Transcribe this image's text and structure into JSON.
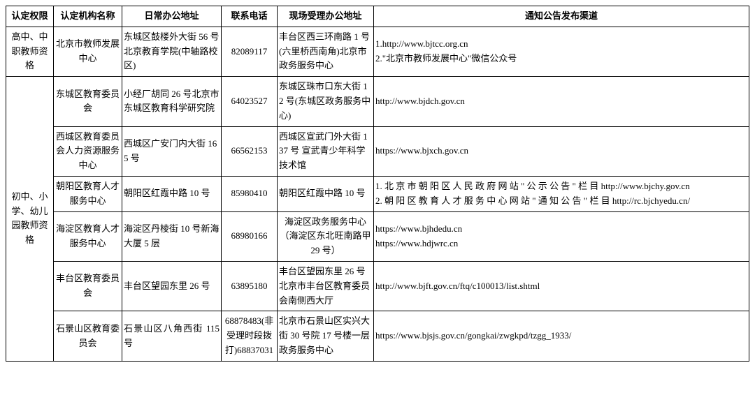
{
  "headers": {
    "authority": "认定权限",
    "org": "认定机构名称",
    "officeAddr": "日常办公地址",
    "phone": "联系电话",
    "siteAddr": "现场受理办公地址",
    "channel": "通知公告发布渠道"
  },
  "rows": [
    {
      "authority": "高中、中职教师资格",
      "org": "北京市教师发展中心",
      "officeAddr": "东城区鼓楼外大街 56 号北京教育学院(中轴路校区)",
      "phone": "82089117",
      "siteAddr": "丰台区西三环南路 1 号(六里桥西南角)北京市政务服务中心",
      "channel": "1.http://www.bjtcc.org.cn\n2.\"北京市教师发展中心\"微信公众号"
    },
    {
      "authority": "初中、小学、幼儿园教师资格",
      "org": "东城区教育委员会",
      "officeAddr": "小经厂胡同 26 号北京市东城区教育科学研究院",
      "phone": "64023527",
      "siteAddr": "东城区珠市口东大街 12 号(东城区政务服务中心)",
      "channel": "http://www.bjdch.gov.cn"
    },
    {
      "org": "西城区教育委员会人力资源服务中心",
      "officeAddr": "西城区广安门内大街 165 号",
      "phone": "66562153",
      "siteAddr": "西城区宣武门外大街 137 号 宣武青少年科学技术馆",
      "channel": "https://www.bjxch.gov.cn"
    },
    {
      "org": "朝阳区教育人才服务中心",
      "officeAddr": "朝阳区红霞中路 10 号",
      "phone": "85980410",
      "siteAddr": "朝阳区红霞中路 10 号",
      "channel": "1. 北 京 市 朝 阳 区 人 民 政 府 网 站 \" 公 示 公 告 \" 栏 目 http://www.bjchy.gov.cn\n2. 朝 阳 区 教 育 人 才 服 务 中 心 网 站 \" 通 知 公 告 \" 栏 目 http://rc.bjchyedu.cn/"
    },
    {
      "org": "海淀区教育人才服务中心",
      "officeAddr": "海淀区丹棱街 10 号新海大厦 5 层",
      "phone": "68980166",
      "siteAddr": "海淀区政务服务中心（海淀区东北旺南路甲 29 号）",
      "channel": "https://www.bjhdedu.cn\nhttps://www.hdjwrc.cn"
    },
    {
      "org": "丰台区教育委员会",
      "officeAddr": "丰台区望园东里 26 号",
      "phone": "63895180",
      "siteAddr": "丰台区望园东里 26 号北京市丰台区教育委员会南侧西大厅",
      "channel": "http://www.bjft.gov.cn/ftq/c100013/list.shtml"
    },
    {
      "org": "石景山区教育委员会",
      "officeAddr": "石景山区八角西街 115 号",
      "phone": "68878483(非受理时段拨打)68837031",
      "siteAddr": "北京市石景山区实兴大街 30 号院 17 号楼一层政务服务中心",
      "channel": "https://www.bjsjs.gov.cn/gongkai/zwgkpd/tzgg_1933/"
    }
  ]
}
